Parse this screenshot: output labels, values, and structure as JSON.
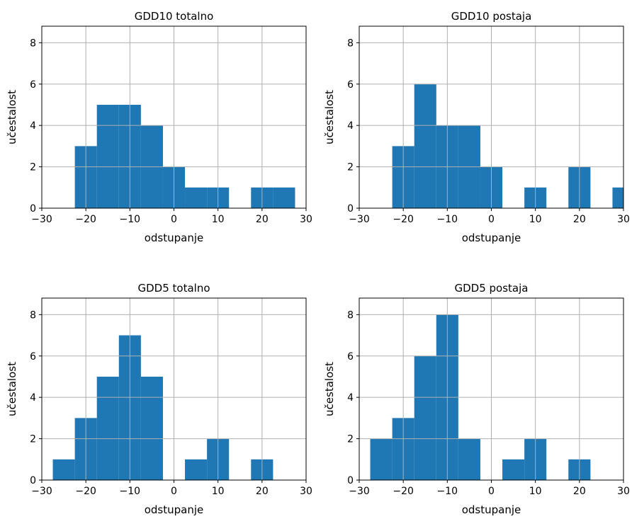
{
  "chart_data": [
    {
      "type": "bar",
      "title": "GDD10 totalno",
      "xlabel": "odstupanje",
      "ylabel": "učestalost",
      "xlim": [
        -30,
        30
      ],
      "ylim": [
        0,
        8.8
      ],
      "xticks": [
        -30,
        -20,
        -10,
        0,
        10,
        20,
        30
      ],
      "yticks": [
        0,
        2,
        4,
        6,
        8
      ],
      "xtick_labels": [
        "−30",
        "−20",
        "−10",
        "0",
        "10",
        "20",
        "30"
      ],
      "ytick_labels": [
        "0",
        "2",
        "4",
        "6",
        "8"
      ],
      "grid": true,
      "color": "#1f77b4",
      "bin_edges": [
        -22.5,
        -17.5,
        -12.5,
        -7.5,
        -2.5,
        2.5,
        7.5,
        12.5,
        17.5,
        22.5,
        27.5
      ],
      "counts": [
        3,
        5,
        5,
        4,
        2,
        1,
        1,
        0,
        1,
        1
      ]
    },
    {
      "type": "bar",
      "title": "GDD10 postaja",
      "xlabel": "odstupanje",
      "ylabel": "učestalost",
      "xlim": [
        -30,
        30
      ],
      "ylim": [
        0,
        8.8
      ],
      "xticks": [
        -30,
        -20,
        -10,
        0,
        10,
        20,
        30
      ],
      "yticks": [
        0,
        2,
        4,
        6,
        8
      ],
      "xtick_labels": [
        "−30",
        "−20",
        "−10",
        "0",
        "10",
        "20",
        "30"
      ],
      "ytick_labels": [
        "0",
        "2",
        "4",
        "6",
        "8"
      ],
      "grid": true,
      "color": "#1f77b4",
      "bin_edges": [
        -22.5,
        -17.5,
        -12.5,
        -7.5,
        -2.5,
        2.5,
        7.5,
        12.5,
        17.5,
        22.5,
        27.5,
        32.5
      ],
      "counts": [
        3,
        6,
        4,
        4,
        2,
        0,
        1,
        0,
        2,
        0,
        1
      ]
    },
    {
      "type": "bar",
      "title": "GDD5 totalno",
      "xlabel": "odstupanje",
      "ylabel": "učestalost",
      "xlim": [
        -30,
        30
      ],
      "ylim": [
        0,
        8.8
      ],
      "xticks": [
        -30,
        -20,
        -10,
        0,
        10,
        20,
        30
      ],
      "yticks": [
        0,
        2,
        4,
        6,
        8
      ],
      "xtick_labels": [
        "−30",
        "−20",
        "−10",
        "0",
        "10",
        "20",
        "30"
      ],
      "ytick_labels": [
        "0",
        "2",
        "4",
        "6",
        "8"
      ],
      "grid": true,
      "color": "#1f77b4",
      "bin_edges": [
        -27.5,
        -22.5,
        -17.5,
        -12.5,
        -7.5,
        -2.5,
        2.5,
        7.5,
        12.5,
        17.5,
        22.5
      ],
      "counts": [
        1,
        3,
        5,
        7,
        5,
        0,
        1,
        2,
        0,
        1
      ]
    },
    {
      "type": "bar",
      "title": "GDD5 postaja",
      "xlabel": "odstupanje",
      "ylabel": "učestalost",
      "xlim": [
        -30,
        30
      ],
      "ylim": [
        0,
        8.8
      ],
      "xticks": [
        -30,
        -20,
        -10,
        0,
        10,
        20,
        30
      ],
      "yticks": [
        0,
        2,
        4,
        6,
        8
      ],
      "xtick_labels": [
        "−30",
        "−20",
        "−10",
        "0",
        "10",
        "20",
        "30"
      ],
      "ytick_labels": [
        "0",
        "2",
        "4",
        "6",
        "8"
      ],
      "grid": true,
      "color": "#1f77b4",
      "bin_edges": [
        -27.5,
        -22.5,
        -17.5,
        -12.5,
        -7.5,
        -2.5,
        2.5,
        7.5,
        12.5,
        17.5,
        22.5
      ],
      "counts": [
        2,
        3,
        6,
        8,
        2,
        0,
        1,
        2,
        0,
        1
      ]
    }
  ]
}
